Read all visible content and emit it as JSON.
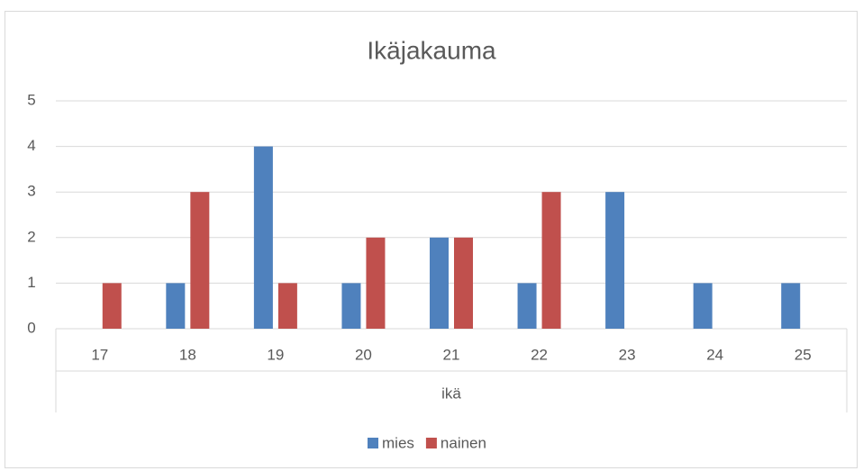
{
  "chart_data": {
    "type": "bar",
    "title": "Ikäjakauma",
    "x_label": "ikä",
    "categories": [
      "17",
      "18",
      "19",
      "20",
      "21",
      "22",
      "23",
      "24",
      "25"
    ],
    "series": [
      {
        "name": "mies",
        "color": "#4f81bd",
        "values": [
          0,
          1,
          4,
          1,
          2,
          1,
          3,
          1,
          1
        ]
      },
      {
        "name": "nainen",
        "color": "#c0504d",
        "values": [
          1,
          3,
          1,
          2,
          2,
          3,
          0,
          0,
          0
        ]
      }
    ],
    "ylim": [
      0,
      5
    ],
    "yticks": [
      0,
      1,
      2,
      3,
      4,
      5
    ],
    "grid": true,
    "legend": "bottom"
  }
}
